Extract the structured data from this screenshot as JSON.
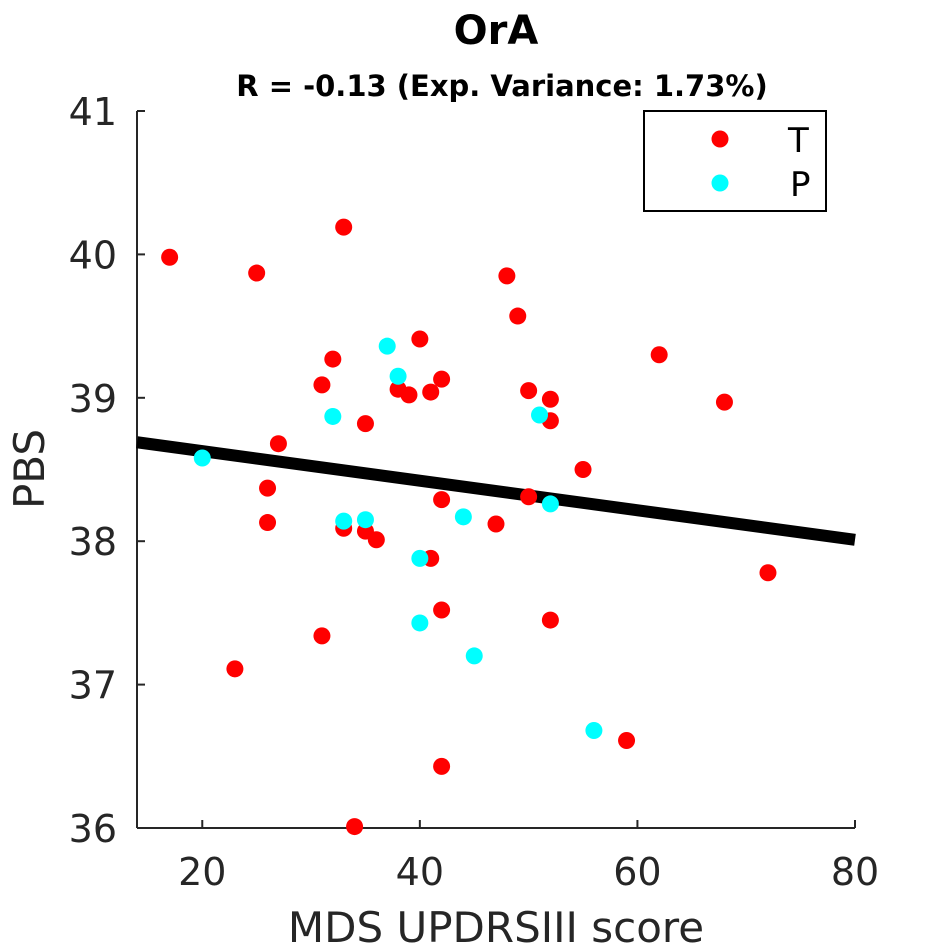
{
  "chart_data": {
    "type": "scatter",
    "title": "OrA",
    "subtitle": "R = -0.13 (Exp. Variance: 1.73%)",
    "xlabel": "MDS UPDRSIII score",
    "ylabel": "PBS",
    "xlim": [
      14,
      80
    ],
    "ylim": [
      36,
      41
    ],
    "xticks": [
      20,
      40,
      60,
      80
    ],
    "yticks": [
      36,
      37,
      38,
      39,
      40,
      41
    ],
    "xtick_labels": [
      "20",
      "40",
      "60",
      "80"
    ],
    "ytick_labels": [
      "36",
      "37",
      "38",
      "39",
      "40",
      "41"
    ],
    "legend_position": "top-right",
    "series": [
      {
        "name": "T",
        "color": "#ff0000",
        "points": [
          [
            17,
            39.98
          ],
          [
            25,
            39.87
          ],
          [
            33,
            40.19
          ],
          [
            23,
            37.11
          ],
          [
            26,
            38.37
          ],
          [
            26,
            38.13
          ],
          [
            27,
            38.68
          ],
          [
            31,
            39.09
          ],
          [
            32,
            39.27
          ],
          [
            31,
            37.34
          ],
          [
            33,
            38.09
          ],
          [
            34,
            36.01
          ],
          [
            35,
            38.82
          ],
          [
            35,
            38.07
          ],
          [
            36,
            38.01
          ],
          [
            38,
            39.06
          ],
          [
            39,
            39.02
          ],
          [
            40,
            39.41
          ],
          [
            41,
            39.04
          ],
          [
            42,
            39.13
          ],
          [
            41,
            37.88
          ],
          [
            42,
            38.29
          ],
          [
            42,
            37.52
          ],
          [
            42,
            36.43
          ],
          [
            47,
            38.12
          ],
          [
            48,
            39.85
          ],
          [
            49,
            39.57
          ],
          [
            50,
            39.05
          ],
          [
            50,
            38.31
          ],
          [
            52,
            38.99
          ],
          [
            52,
            38.84
          ],
          [
            52,
            37.45
          ],
          [
            55,
            38.5
          ],
          [
            59,
            36.61
          ],
          [
            62,
            39.3
          ],
          [
            68,
            38.97
          ],
          [
            72,
            37.78
          ]
        ]
      },
      {
        "name": "P",
        "color": "#00ffff",
        "points": [
          [
            20,
            38.58
          ],
          [
            32,
            38.87
          ],
          [
            33,
            38.14
          ],
          [
            35,
            38.15
          ],
          [
            37,
            39.36
          ],
          [
            38,
            39.15
          ],
          [
            40,
            37.88
          ],
          [
            40,
            37.43
          ],
          [
            44,
            38.17
          ],
          [
            45,
            37.2
          ],
          [
            51,
            38.88
          ],
          [
            52,
            38.26
          ],
          [
            56,
            36.68
          ]
        ]
      }
    ],
    "fit_line": {
      "x": [
        14,
        80
      ],
      "y": [
        38.69,
        38.01
      ],
      "color": "#000000"
    }
  }
}
